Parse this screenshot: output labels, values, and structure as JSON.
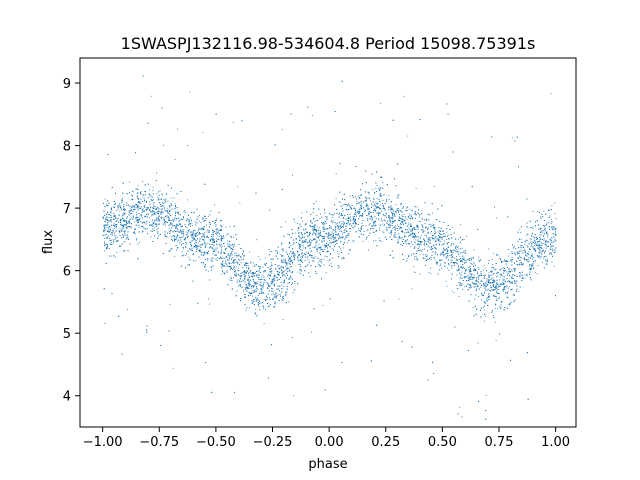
{
  "chart_data": {
    "type": "scatter",
    "title": "1SWASPJ132116.98-534604.8 Period 15098.75391s",
    "xlabel": "phase",
    "ylabel": "flux",
    "xlim": [
      -1.1,
      1.09
    ],
    "ylim": [
      3.5,
      9.4
    ],
    "xticks": [
      -1.0,
      -0.75,
      -0.5,
      -0.25,
      0.0,
      0.25,
      0.5,
      0.75,
      1.0
    ],
    "xtick_labels": [
      "−1.00",
      "−0.75",
      "−0.50",
      "−0.25",
      "0.00",
      "0.25",
      "0.50",
      "0.75",
      "1.00"
    ],
    "yticks": [
      4,
      5,
      6,
      7,
      8,
      9
    ],
    "ytick_labels": [
      "4",
      "5",
      "6",
      "7",
      "8",
      "9"
    ],
    "grid": false,
    "marker_color": "#1f77b4",
    "series": [
      {
        "phase_range": [
          -1.0,
          1.0
        ],
        "approx_points": 30000,
        "mean_curve": {
          "x": [
            -1.0,
            -0.8,
            -0.55,
            -0.3,
            -0.05,
            0.2,
            0.45,
            0.7,
            1.0
          ],
          "y": [
            6.7,
            6.95,
            6.5,
            5.75,
            6.5,
            6.95,
            6.5,
            5.75,
            6.55
          ]
        },
        "scatter_halfwidth": 0.3
      }
    ]
  }
}
